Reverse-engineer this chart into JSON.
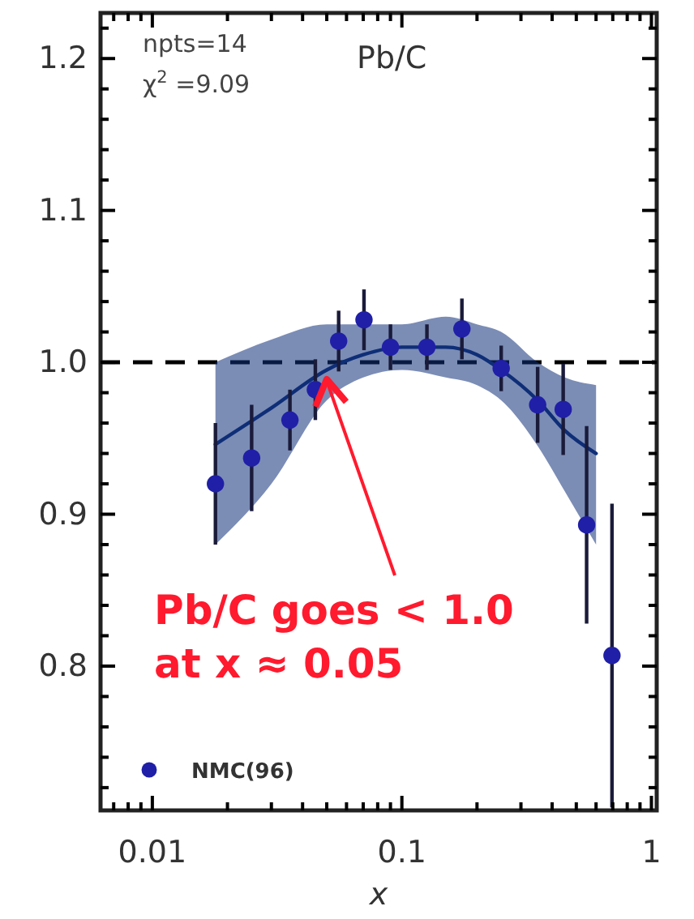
{
  "chart_data": {
    "type": "scatter",
    "title": "Pb/C",
    "xlabel": "x",
    "log": "x",
    "xlim": [
      0.0062,
      1.05
    ],
    "ylim": [
      0.705,
      1.23
    ],
    "xticks": [
      {
        "value": 0.007,
        "label": null
      },
      {
        "value": 0.008,
        "label": null
      },
      {
        "value": 0.009,
        "label": null
      },
      0.01,
      {
        "value": 0.02,
        "label": null
      },
      {
        "value": 0.03,
        "label": null
      },
      {
        "value": 0.04,
        "label": null
      },
      {
        "value": 0.05,
        "label": null
      },
      {
        "value": 0.06,
        "label": null
      },
      {
        "value": 0.07,
        "label": null
      },
      {
        "value": 0.08,
        "label": null
      },
      {
        "value": 0.09,
        "label": null
      },
      0.1,
      {
        "value": 0.2,
        "label": null
      },
      {
        "value": 0.3,
        "label": null
      },
      {
        "value": 0.4,
        "label": null
      },
      {
        "value": 0.5,
        "label": null
      },
      {
        "value": 0.6,
        "label": null
      },
      {
        "value": 0.7,
        "label": null
      },
      {
        "value": 0.8,
        "label": null
      },
      {
        "value": 0.9,
        "label": null
      },
      1
    ],
    "yticks": [
      {
        "value": 0.72,
        "label": null
      },
      {
        "value": 0.74,
        "label": null
      },
      {
        "value": 0.76,
        "label": null
      },
      {
        "value": 0.78,
        "label": null
      },
      0.8,
      {
        "value": 0.82,
        "label": null
      },
      {
        "value": 0.84,
        "label": null
      },
      {
        "value": 0.86,
        "label": null
      },
      {
        "value": 0.88,
        "label": null
      },
      0.9,
      {
        "value": 0.92,
        "label": null
      },
      {
        "value": 0.94,
        "label": null
      },
      {
        "value": 0.96,
        "label": null
      },
      {
        "value": 0.98,
        "label": null
      },
      {
        "value": 1,
        "label": "1.0"
      },
      {
        "value": 1.02,
        "label": null
      },
      {
        "value": 1.04,
        "label": null
      },
      {
        "value": 1.06,
        "label": null
      },
      {
        "value": 1.08,
        "label": null
      },
      1.1,
      {
        "value": 1.12,
        "label": null
      },
      {
        "value": 1.14,
        "label": null
      },
      {
        "value": 1.16,
        "label": null
      },
      {
        "value": 1.18,
        "label": null
      },
      1.2,
      {
        "value": 1.22,
        "label": null
      }
    ],
    "grid": false,
    "legend": "bottom left",
    "marker": "circle",
    "ref_lines": [
      {
        "axis": "y",
        "value": 1,
        "label": null,
        "color": "#000000",
        "line_style": "dashed"
      }
    ],
    "annotations": [
      "npts=14",
      "χ$^{2}$ =9.09",
      {
        "text": "Pb/C goes < 1.0\nat x ≈ 0.05",
        "x": 0.05,
        "y": 0.99
      }
    ],
    "series": [
      {
        "type": "line",
        "color": "#0f2e78",
        "line_style": "solid",
        "marker": "none",
        "x": [
          0.0179,
          0.03,
          0.05,
          0.07,
          0.1,
          0.15,
          0.2,
          0.25,
          0.35,
          0.45,
          0.6
        ],
        "values": [
          0.946,
          0.97,
          0.995,
          1.005,
          1.01,
          1.01,
          1.005,
          0.995,
          0.975,
          0.955,
          0.94
        ],
        "lower": [
          0.88,
          0.92,
          0.975,
          0.99,
          0.995,
          0.99,
          0.985,
          0.975,
          0.945,
          0.915,
          0.88
        ],
        "upper": [
          1.0,
          1.015,
          1.025,
          1.025,
          1.025,
          1.03,
          1.025,
          1.02,
          1.0,
          0.99,
          0.985
        ]
      },
      {
        "name": "NMC(96)",
        "color": "#1f1fa8",
        "x": [
          0.0179,
          0.025,
          0.0356,
          0.045,
          0.0558,
          0.0705,
          0.09,
          0.126,
          0.174,
          0.25,
          0.35,
          0.443,
          0.55,
          0.695
        ],
        "values": [
          0.92,
          0.937,
          0.962,
          0.982,
          1.014,
          1.028,
          1.01,
          1.01,
          1.022,
          0.996,
          0.972,
          0.969,
          0.893,
          0.807
        ],
        "errors": [
          0.04,
          0.035,
          0.02,
          0.02,
          0.02,
          0.02,
          0.015,
          0.015,
          0.02,
          0.015,
          0.025,
          0.03,
          0.065,
          0.1
        ]
      }
    ]
  }
}
